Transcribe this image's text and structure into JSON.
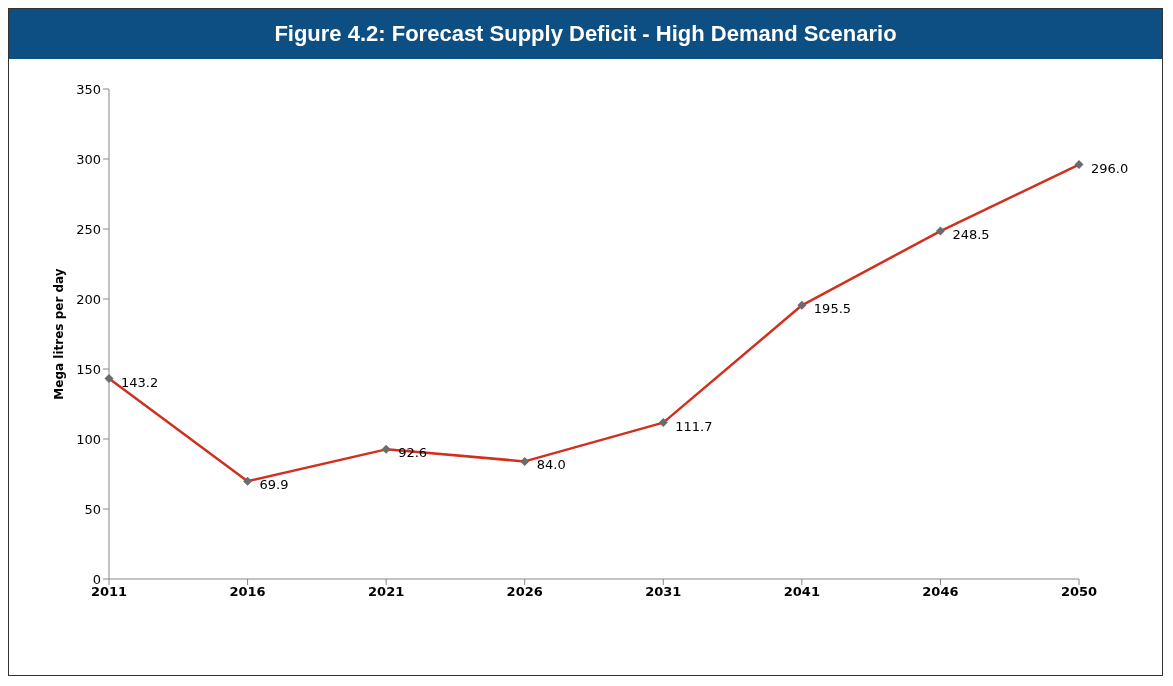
{
  "chart_data": {
    "type": "line",
    "title": "Figure 4.2: Forecast Supply Deficit - High Demand Scenario",
    "ylabel": "Mega litres per day",
    "categories": [
      "2011",
      "2016",
      "2021",
      "2026",
      "2031",
      "2041",
      "2046",
      "2050"
    ],
    "series": [
      {
        "color": "#d0301f",
        "values": [
          143.2,
          69.9,
          92.6,
          84.0,
          111.7,
          195.5,
          248.5,
          296.0
        ],
        "value_labels": [
          "143.2",
          "69.9",
          "92.6",
          "84.0",
          "111.7",
          "195.5",
          "248.5",
          "296.0"
        ]
      }
    ],
    "ylim": [
      0,
      350
    ],
    "yticks": [
      0,
      50,
      100,
      150,
      200,
      250,
      300,
      350
    ],
    "marker": "diamond",
    "grid": false
  }
}
